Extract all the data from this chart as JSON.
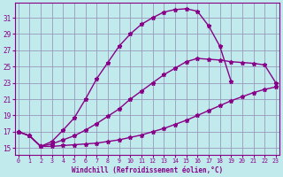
{
  "xlabel": "Windchill (Refroidissement éolien,°C)",
  "bg_color": "#c0eaec",
  "grid_color": "#9999bb",
  "line_color": "#880088",
  "x_ticks": [
    0,
    1,
    2,
    3,
    4,
    5,
    6,
    7,
    8,
    9,
    10,
    11,
    12,
    13,
    14,
    15,
    16,
    17,
    18,
    19,
    20,
    21,
    22,
    23
  ],
  "y_ticks": [
    15,
    17,
    19,
    21,
    23,
    25,
    27,
    29,
    31
  ],
  "xlim": [
    -0.3,
    23.3
  ],
  "ylim": [
    14.2,
    32.8
  ],
  "line1_x": [
    0,
    1,
    2,
    3,
    4,
    5,
    6,
    7,
    8,
    9,
    10,
    11,
    12,
    13,
    14,
    15,
    16,
    17,
    18,
    19,
    20,
    21,
    22,
    23
  ],
  "line1_y": [
    17.0,
    16.5,
    15.2,
    15.2,
    15.3,
    15.4,
    15.5,
    15.6,
    15.8,
    16.0,
    16.3,
    16.6,
    17.0,
    17.4,
    17.9,
    18.4,
    19.0,
    19.6,
    20.2,
    20.8,
    21.3,
    21.8,
    22.2,
    22.5
  ],
  "line2_x": [
    0,
    1,
    2,
    3,
    4,
    5,
    6,
    7,
    8,
    9,
    10,
    11,
    12,
    13,
    14,
    15,
    16,
    17,
    18,
    19,
    20,
    21,
    22,
    23
  ],
  "line2_y": [
    17.0,
    16.5,
    15.2,
    15.5,
    16.0,
    16.5,
    17.2,
    18.0,
    18.9,
    19.8,
    21.0,
    22.0,
    23.0,
    24.0,
    24.8,
    25.6,
    26.0,
    25.9,
    25.8,
    25.6,
    25.5,
    25.4,
    25.2,
    23.0
  ],
  "line3_x": [
    0,
    1,
    2,
    3,
    4,
    5,
    6,
    7,
    8,
    9,
    10,
    11,
    12,
    13,
    14,
    15,
    16,
    17,
    18,
    19
  ],
  "line3_y": [
    17.0,
    16.5,
    15.2,
    15.8,
    17.2,
    18.7,
    21.0,
    23.5,
    25.5,
    27.5,
    29.0,
    30.2,
    31.0,
    31.7,
    32.0,
    32.1,
    31.8,
    30.0,
    27.5,
    23.2
  ],
  "marker": "*",
  "markersize": 3.5,
  "linewidth": 1.0
}
